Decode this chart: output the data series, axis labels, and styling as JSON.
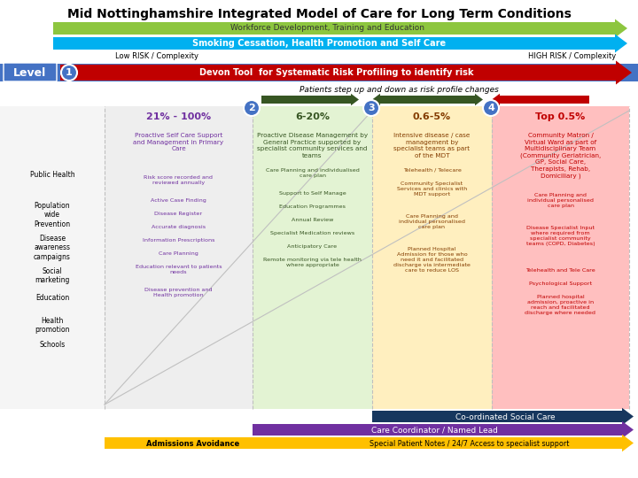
{
  "title": "Mid Nottinghamshire Integrated Model of Care for Long Term Conditions",
  "arrow1_text": "Workforce Development, Training and Education",
  "arrow2_text": "Smoking Cessation, Health Promotion and Self Care",
  "low_risk": "Low RISK / Complexity",
  "high_risk": "HIGH RISK / Complexity",
  "level_label": "Level",
  "devon_tool": "Devon Tool  for Systematic Risk Profiling to identify risk",
  "patients_step": "Patients step up and down as risk profile changes",
  "col1_pct": "21% - 100%",
  "col1_title": "Proactive Self Care Support\nand Management in Primary\nCare",
  "col1_items": [
    "Risk score recorded and\nreviewed annually",
    "Active Case Finding",
    "Disease Register",
    "Accurate diagnosis",
    "Information Prescriptions",
    "Care Planning",
    "Education relevant to patients\nneeds",
    "Disease prevention and\nHealth promotion"
  ],
  "col2_pct": "6-20%",
  "col2_title": "Proactive Disease Management by\nGeneral Practice supported by\nspecialist community services and\nteams",
  "col2_items": [
    "Care Planning and individualised\ncare plan",
    "Support to Self Manage",
    "Education Programmes",
    "Annual Review",
    "Specialist Medication reviews",
    "Anticipatory Care",
    "Remote monitoring via tele health\nwhere appropriate"
  ],
  "col3_pct": "0.6-5%",
  "col3_title": "Intensive disease / case\nmanagement by\nspecialist teams as part\nof the MDT",
  "col3_items": [
    "Telehealth / Telecare",
    "Community Specialist\nServices and clinics with\nMDT support",
    "Care Planning and\nindividual personalised\ncare plan",
    "Planned Hospital\nAdmission for those who\nneed it and facilitated\ndischarge via intermediate\ncare to reduce LOS"
  ],
  "col4_pct": "Top 0.5%",
  "col4_title": "Community Matron /\nVirtual Ward as part of\nMultidisciplinary Team\n(Community Geriatrician,\nGP, Social Care,\nTherapists, Rehab,\nDomiciliary )",
  "col4_items": [
    "Care Planning and\nindividual personalised\ncare plan",
    "Disease Specialist Input\nwhere required from\nspecialist community\nteams (COPD, Diabetes)",
    "Telehealth and Tele Care",
    "Psychological Support",
    "Planned hospital\nadmission, proactive in\nreach and facilitated\ndischarge where needed"
  ],
  "left_labels": [
    "Public Health",
    "Population\nwide\nPrevention",
    "Disease\nawareness\ncampaigns",
    "Social\nmarketing",
    "Education",
    "Health\npromotion",
    "Schools"
  ],
  "bottom_bar1_text": "Co-ordinated Social Care",
  "bottom_bar2_text": "Care Coordinator / Named Lead",
  "bottom_left_text": "Admissions Avoidance",
  "bottom_right_text": "Special Patient Notes / 24/7 Access to specialist support",
  "circle_numbers": [
    "1",
    "2",
    "3",
    "4"
  ],
  "arrow1_color": "#8dc63f",
  "arrow2_color": "#00b0f0",
  "devon_color": "#c00000",
  "col1_color": "#bfbfbf",
  "col2_color": "#92d050",
  "col3_color": "#ffc000",
  "col4_color": "#ff0000",
  "col1_pct_color": "#7030a0",
  "col2_pct_color": "#375623",
  "col3_pct_color": "#833c00",
  "col4_pct_color": "#c00000",
  "col1_text_color": "#7030a0",
  "col2_text_color": "#375623",
  "col3_text_color": "#833c00",
  "col4_text_color": "#c00000",
  "level_bg": "#4472c4",
  "circle_color": "#4472c4",
  "bottom1_color": "#17375e",
  "bottom2_color": "#7030a0",
  "bottom3_color": "#ffc000",
  "bg_color": "#ffffff",
  "header_blue_bg": "#4472c4",
  "dashed_line_color": "#bfbfbf"
}
